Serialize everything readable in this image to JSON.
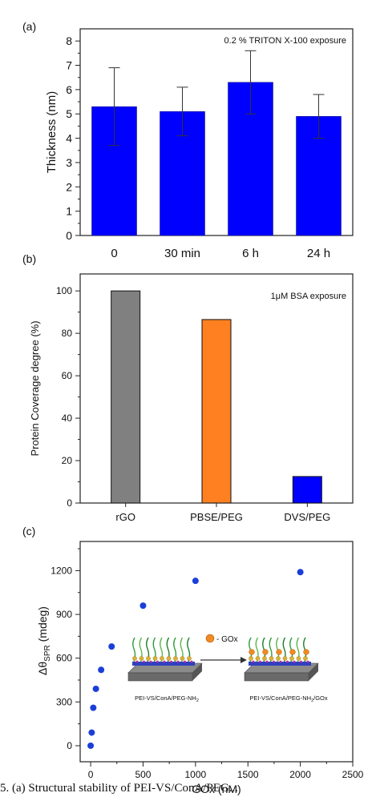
{
  "chart_data": [
    {
      "panel_label": "(a)",
      "type": "bar",
      "annotation": "0.2 % TRITON X-100 exposure",
      "categories": [
        "0",
        "30 min",
        "6 h",
        "24 h"
      ],
      "values": [
        5.3,
        5.1,
        6.3,
        4.9
      ],
      "errors": [
        1.6,
        1.0,
        1.3,
        0.9
      ],
      "colors": [
        "#0000ff",
        "#0000ff",
        "#0000ff",
        "#0000ff"
      ],
      "ylabel": "Thickness (nm)",
      "ylim": [
        0,
        8.5
      ],
      "yticks": [
        "0",
        "1",
        "2",
        "3",
        "4",
        "5",
        "6",
        "7",
        "8"
      ]
    },
    {
      "panel_label": "(b)",
      "type": "bar",
      "annotation": "1μM BSA exposure",
      "categories": [
        "rGO",
        "PBSE/PEG",
        "DVS/PEG"
      ],
      "values": [
        100,
        86.5,
        12.5
      ],
      "colors": [
        "#808080",
        "#ff8020",
        "#0000ff"
      ],
      "ylabel": "Protein Coverage degree (%)",
      "ylim": [
        0,
        108
      ],
      "yticks": [
        "0",
        "20",
        "40",
        "60",
        "80",
        "100"
      ]
    },
    {
      "panel_label": "(c)",
      "type": "scatter",
      "x": [
        0,
        10,
        25,
        50,
        100,
        200,
        500,
        1000,
        2000
      ],
      "y": [
        0,
        90,
        260,
        390,
        520,
        680,
        960,
        1130,
        1190
      ],
      "color": "#1a3fd8",
      "xlabel": "GOx (nM)",
      "ylabel_main": "Δθ",
      "ylabel_sub": "SPR",
      "ylabel_unit": " (mdeg)",
      "xlim": [
        -100,
        2500
      ],
      "ylim": [
        -110,
        1400
      ],
      "xticks": [
        "0",
        "500",
        "1000",
        "1500",
        "2000",
        "2500"
      ],
      "yticks": [
        "0",
        "300",
        "600",
        "900",
        "1200"
      ],
      "inset": {
        "legend_label": "GOx",
        "left_caption_main": "PEI-VS/ConA/PEG-NH",
        "left_caption_sub": "2",
        "right_caption_main": "PEI-VS/ConA/PEG-NH",
        "right_caption_sub": "2",
        "right_caption_tail": "/GOx"
      }
    }
  ],
  "caption": "5. (a) Structural stability of PEI-VS/ConA/PEG..."
}
